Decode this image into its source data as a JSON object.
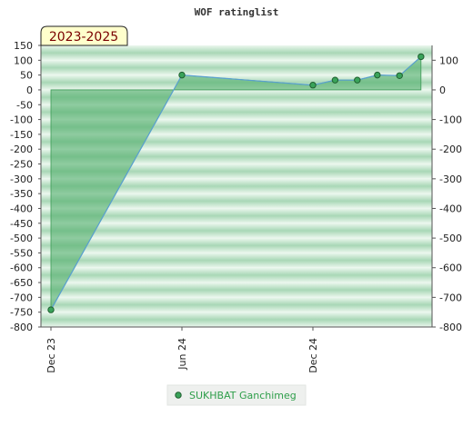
{
  "chart_data": {
    "type": "area",
    "title": "WOF ratinglist",
    "period_label": "2023-2025",
    "x_tick_labels": [
      "Dec 23",
      "Jun 24",
      "Dec 24"
    ],
    "ylim": [
      -800,
      150
    ],
    "y_ticks_left": [
      150,
      100,
      50,
      0,
      -50,
      -100,
      -150,
      -200,
      -250,
      -300,
      -350,
      -400,
      -450,
      -500,
      -550,
      -600,
      -650,
      -700,
      -750,
      -800
    ],
    "y_ticks_right": [
      100,
      0,
      -100,
      -200,
      -300,
      -400,
      -500,
      -600,
      -700,
      -800
    ],
    "series": [
      {
        "name": "SUKHBAT Ganchimeg",
        "points": [
          {
            "date": "2023-12-01",
            "value": -742
          },
          {
            "date": "2024-06-01",
            "value": 50
          },
          {
            "date": "2024-12-01",
            "value": 16
          },
          {
            "date": "2025-01-01",
            "value": 33
          },
          {
            "date": "2025-02-01",
            "value": 33
          },
          {
            "date": "2025-03-01",
            "value": 50
          },
          {
            "date": "2025-04-01",
            "value": 48
          },
          {
            "date": "2025-05-01",
            "value": 112
          }
        ]
      }
    ],
    "colors": {
      "line": "#5aa0d0",
      "fill": "#55b070",
      "marker": "#2f8f45",
      "band_dark": "#9fd3ae",
      "band_light": "#e9f6ec",
      "badge_bg": "#ffffcc"
    }
  }
}
